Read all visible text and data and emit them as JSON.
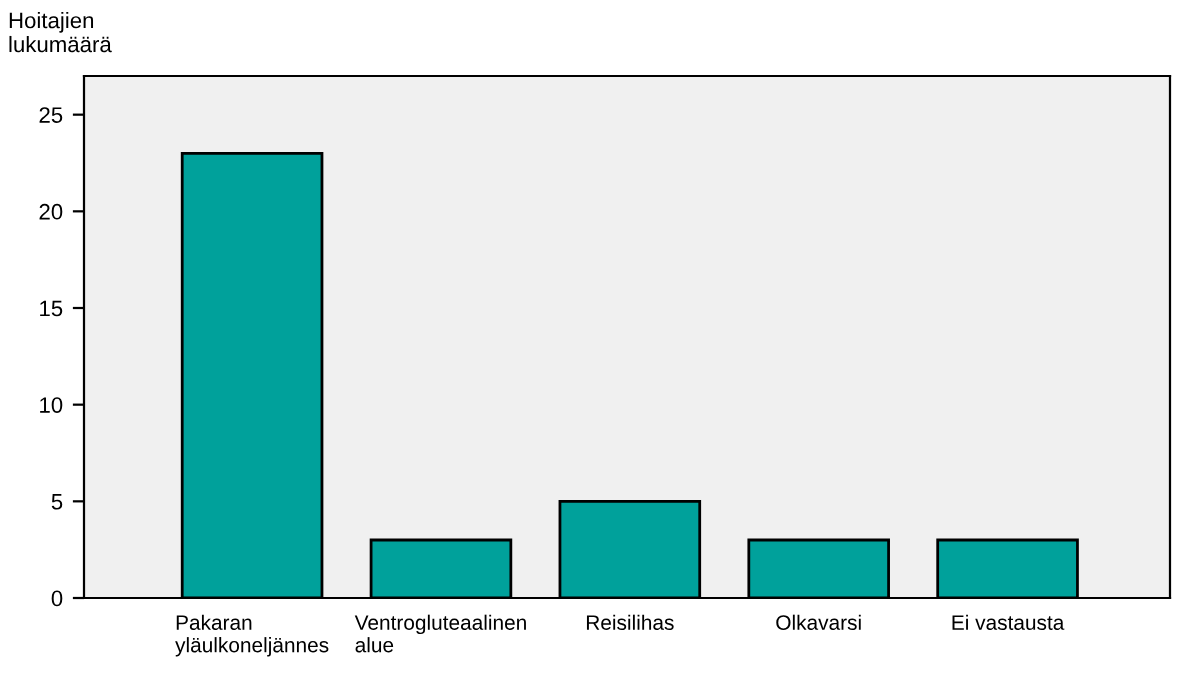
{
  "chart_data": {
    "type": "bar",
    "ylabel": "Hoitajien\nlukumäärä",
    "categories": [
      "Pakaran\nyläulkoneljännes",
      "Ventrogluteaalinen\nalue",
      "Reisilihas",
      "Olkavarsi",
      "Ei vastausta"
    ],
    "values": [
      23,
      3,
      5,
      3,
      3
    ],
    "color": "#00a19b",
    "ylim": [
      0,
      27
    ],
    "yticks": [
      0,
      5,
      10,
      15,
      20,
      25
    ],
    "grid": false,
    "legend": false
  }
}
